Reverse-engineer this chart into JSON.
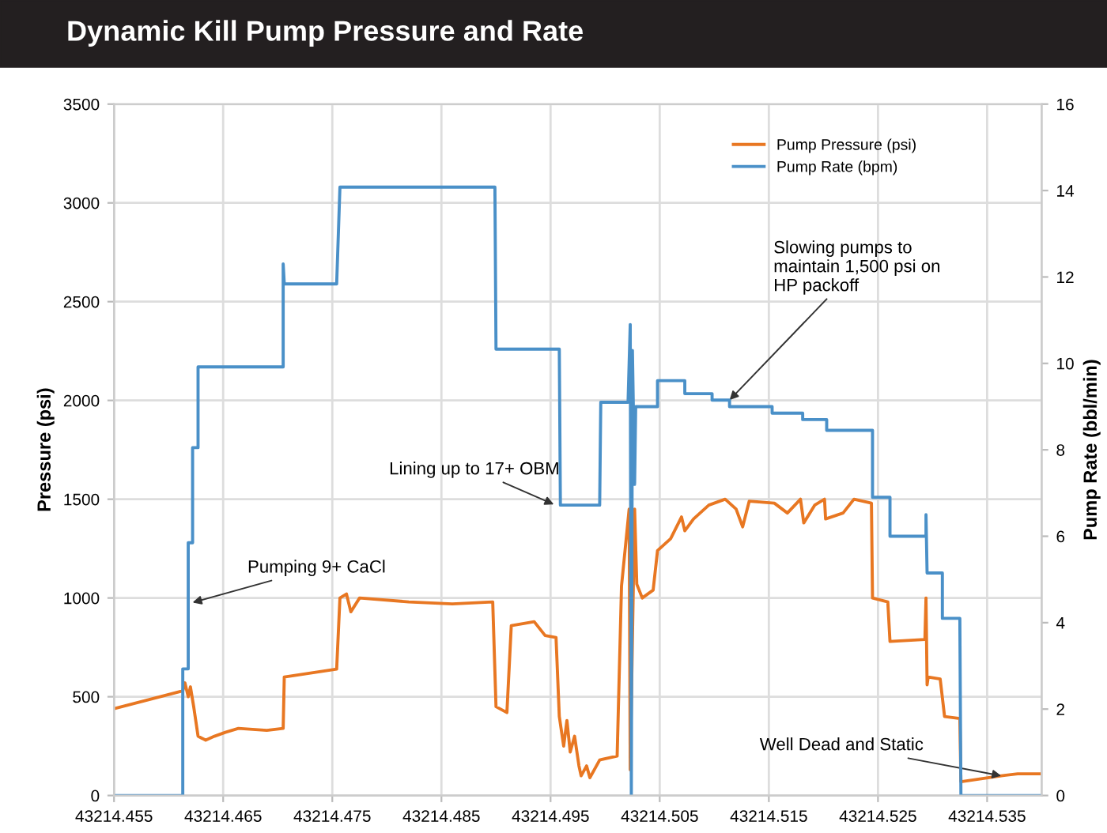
{
  "chart_data": {
    "type": "line",
    "title": "Dynamic Kill Pump Pressure and Rate",
    "ylabel": "Pressure (psi)",
    "y2label": "Pump Rate (bbl/min)",
    "series": [
      {
        "name": "Pump Pressure (psi)",
        "color": "#e87722",
        "x": [
          43214.455,
          43214.4613,
          43214.4615,
          43214.4618,
          43214.462,
          43214.4623,
          43214.4627,
          43214.4634,
          43214.4642,
          43214.4652,
          43214.4664,
          43214.469,
          43214.4705,
          43214.4706,
          43214.473,
          43214.4754,
          43214.4757,
          43214.4763,
          43214.4767,
          43214.4775,
          43214.482,
          43214.486,
          43214.4897,
          43214.49,
          43214.491,
          43214.4914,
          43214.4935,
          43214.4945,
          43214.4955,
          43214.4958,
          43214.4962,
          43214.4965,
          43214.4968,
          43214.4972,
          43214.4976,
          43214.4978,
          43214.4983,
          43214.4986,
          43214.4995,
          43214.5011,
          43214.5015,
          43214.5022,
          43214.5023,
          43214.5027,
          43214.5029,
          43214.5034,
          43214.5044,
          43214.5048,
          43214.506,
          43214.507,
          43214.5073,
          43214.5081,
          43214.5095,
          43214.511,
          43214.512,
          43214.5126,
          43214.5132,
          43214.5155,
          43214.5167,
          43214.5179,
          43214.5182,
          43214.5192,
          43214.5201,
          43214.5202,
          43214.5218,
          43214.5228,
          43214.5244,
          43214.5245,
          43214.5259,
          43214.5261,
          43214.5293,
          43214.5294,
          43214.5295,
          43214.5296,
          43214.5307,
          43214.5311,
          43214.5325,
          43214.5326,
          43214.5363,
          43214.5378,
          43214.54
        ],
        "values": [
          440,
          530,
          570,
          500,
          550,
          450,
          300,
          280,
          300,
          320,
          340,
          330,
          340,
          600,
          620,
          640,
          1000,
          1020,
          930,
          1000,
          980,
          970,
          980,
          450,
          420,
          860,
          880,
          810,
          800,
          400,
          250,
          380,
          220,
          300,
          150,
          100,
          150,
          90,
          180,
          200,
          1060,
          1450,
          130,
          1450,
          1070,
          1000,
          1040,
          1240,
          1300,
          1410,
          1340,
          1400,
          1470,
          1500,
          1450,
          1360,
          1490,
          1480,
          1430,
          1500,
          1380,
          1470,
          1500,
          1400,
          1430,
          1500,
          1480,
          1000,
          980,
          780,
          790,
          1000,
          560,
          600,
          590,
          400,
          390,
          70,
          100,
          110,
          110
        ]
      },
      {
        "name": "Pump Rate (bpm)",
        "color": "#4a90c8",
        "axis": "y2",
        "x": [
          43214.455,
          43214.4613,
          43214.4613,
          43214.4618,
          43214.4618,
          43214.4622,
          43214.4622,
          43214.4627,
          43214.4627,
          43214.4705,
          43214.4705,
          43214.4706,
          43214.4754,
          43214.4757,
          43214.4899,
          43214.49,
          43214.4958,
          43214.4959,
          43214.4995,
          43214.4996,
          43214.5021,
          43214.5022,
          43214.5023,
          43214.5024,
          43214.5025,
          43214.5027,
          43214.5028,
          43214.5048,
          43214.5048,
          43214.5073,
          43214.5073,
          43214.5098,
          43214.5098,
          43214.5114,
          43214.5114,
          43214.5153,
          43214.5153,
          43214.5181,
          43214.5181,
          43214.5203,
          43214.5203,
          43214.5245,
          43214.5245,
          43214.5261,
          43214.5261,
          43214.5294,
          43214.5294,
          43214.5295,
          43214.5309,
          43214.5309,
          43214.5325,
          43214.5326,
          43214.54
        ],
        "values": [
          0,
          0,
          2.93,
          2.93,
          5.85,
          5.85,
          8.05,
          8.05,
          9.92,
          9.92,
          12.3,
          11.84,
          11.84,
          14.08,
          14.08,
          10.33,
          10.33,
          6.72,
          6.72,
          9.1,
          9.1,
          10.0,
          10.9,
          0,
          10.3,
          7.2,
          9.0,
          9.0,
          9.6,
          9.6,
          9.3,
          9.3,
          9.15,
          9.15,
          9.0,
          9.0,
          8.85,
          8.85,
          8.7,
          8.7,
          8.45,
          8.45,
          6.9,
          6.9,
          6.0,
          6.0,
          6.5,
          5.15,
          5.15,
          4.1,
          4.1,
          0,
          0
        ]
      }
    ],
    "xlim": [
      43214.455,
      43214.54
    ],
    "xticks": [
      43214.455,
      43214.465,
      43214.475,
      43214.485,
      43214.495,
      43214.505,
      43214.515,
      43214.525,
      43214.535
    ],
    "ylim": [
      0,
      3500
    ],
    "yticks": [
      0,
      500,
      1000,
      1500,
      2000,
      2500,
      3000,
      3500
    ],
    "y2lim": [
      0,
      16
    ],
    "y2ticks": [
      0,
      2,
      4,
      6,
      8,
      10,
      12,
      14,
      16
    ],
    "grid": true,
    "legend": "top right",
    "marker": "none",
    "line_style": "solid",
    "annotations": [
      {
        "text": "Pumping 9+ CaCl",
        "x": 43214.4622,
        "y": 977
      },
      {
        "text": "Lining up to 17+ OBM",
        "x": 43214.4953,
        "y": 1474
      },
      {
        "text": "Slowing pumps to\nmaintain 1,500 psi on\nHP packoff",
        "x": 43214.5114,
        "y": 2002
      },
      {
        "text": "Well Dead and Static",
        "x": 43214.5363,
        "y": 100
      }
    ]
  }
}
